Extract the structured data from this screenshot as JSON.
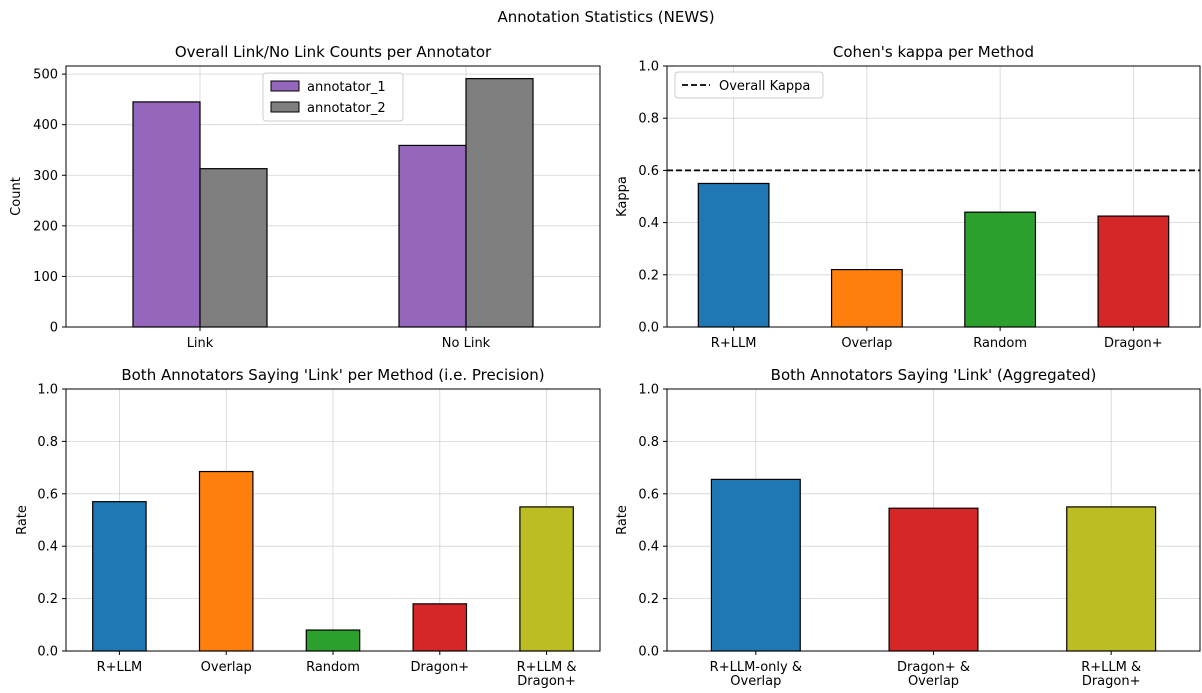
{
  "suptitle": "Annotation Statistics (NEWS)",
  "chart_data": [
    {
      "type": "bar",
      "title": "Overall Link/No Link Counts per Annotator",
      "xlabel": "",
      "ylabel": "Count",
      "categories": [
        "Link",
        "No Link"
      ],
      "series": [
        {
          "name": "annotator_1",
          "values": [
            445,
            359
          ],
          "color": "#9467bd"
        },
        {
          "name": "annotator_2",
          "values": [
            313,
            491
          ],
          "color": "#7f7f7f"
        }
      ],
      "ylim": [
        0,
        516
      ],
      "yticks": [
        "0",
        "100",
        "200",
        "300",
        "400",
        "500"
      ],
      "grid": true,
      "legend": "top-center"
    },
    {
      "type": "bar",
      "title": "Cohen's kappa per Method",
      "xlabel": "",
      "ylabel": "Kappa",
      "categories": [
        "R+LLM",
        "Overlap",
        "Random",
        "Dragon+"
      ],
      "values": [
        0.55,
        0.22,
        0.44,
        0.425
      ],
      "colors": [
        "#1f77b4",
        "#ff7f0e",
        "#2ca02c",
        "#d62728"
      ],
      "reference_line": {
        "label": "Overall Kappa",
        "value": 0.6
      },
      "ylim": [
        0,
        1.0
      ],
      "yticks": [
        "0.0",
        "0.2",
        "0.4",
        "0.6",
        "0.8",
        "1.0"
      ],
      "grid": true,
      "legend": "top-left"
    },
    {
      "type": "bar",
      "title": "Both Annotators Saying 'Link' per Method (i.e. Precision)",
      "xlabel": "",
      "ylabel": "Rate",
      "categories": [
        "R+LLM",
        "Overlap",
        "Random",
        "Dragon+",
        "R+LLM &\nDragon+"
      ],
      "values": [
        0.57,
        0.685,
        0.08,
        0.18,
        0.55
      ],
      "colors": [
        "#1f77b4",
        "#ff7f0e",
        "#2ca02c",
        "#d62728",
        "#bcbd22"
      ],
      "ylim": [
        0,
        1.0
      ],
      "yticks": [
        "0.0",
        "0.2",
        "0.4",
        "0.6",
        "0.8",
        "1.0"
      ],
      "grid": true
    },
    {
      "type": "bar",
      "title": "Both Annotators Saying 'Link' (Aggregated)",
      "xlabel": "",
      "ylabel": "Rate",
      "categories": [
        "R+LLM-only &\nOverlap",
        "Dragon+ &\nOverlap",
        "R+LLM &\nDragon+"
      ],
      "values": [
        0.655,
        0.545,
        0.55
      ],
      "colors": [
        "#1f77b4",
        "#d62728",
        "#bcbd22"
      ],
      "ylim": [
        0,
        1.0
      ],
      "yticks": [
        "0.0",
        "0.2",
        "0.4",
        "0.6",
        "0.8",
        "1.0"
      ],
      "grid": true
    }
  ]
}
